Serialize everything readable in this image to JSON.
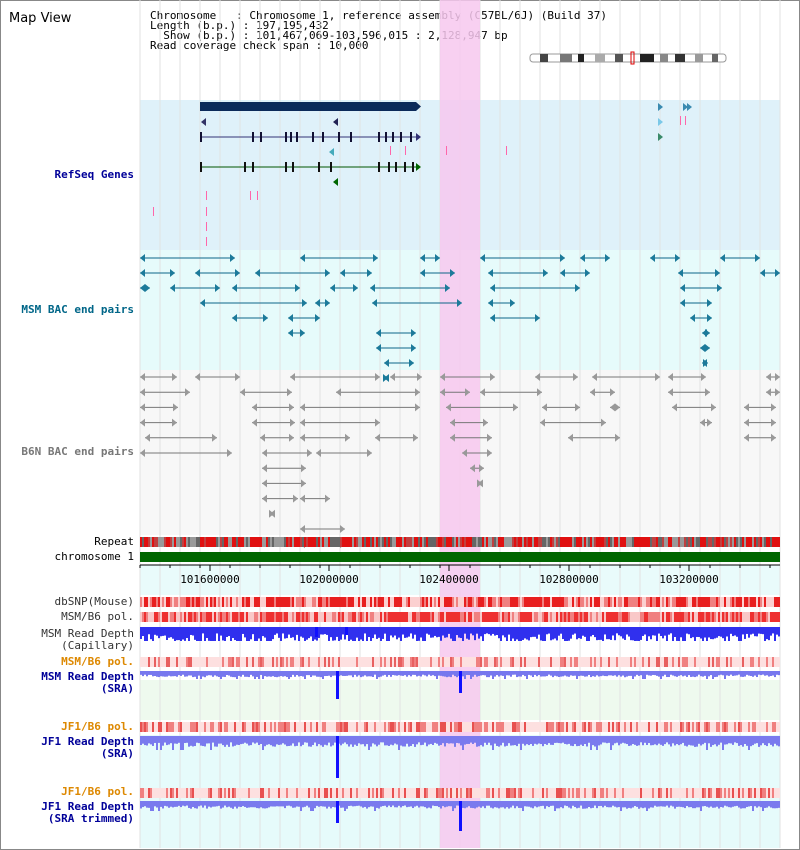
{
  "title": "Map View",
  "info": {
    "line1": "Chromosome   : Chromosome 1, reference assembly (C57BL/6J) (Build 37)",
    "line2": "Length (b.p.) : 197,195,432",
    "line3": "  Show (b.p.) : 101,467,069-103,596,015 : 2,128,947 bp",
    "line4": "Read coverage check span : 10,000"
  },
  "tracks": {
    "refseq": "RefSeq Genes",
    "msm_bac": "MSM BAC end pairs",
    "b6n_bac": "B6N BAC end pairs",
    "repeat": "Repeat",
    "chromosome": "chromosome 1",
    "dbsnp": "dbSNP(Mouse)",
    "msm_pol_cap": "MSM/B6 pol.",
    "msm_depth_cap": "MSM Read Depth\n(Capillary)",
    "msm_pol_sra": "MSM/B6 pol.",
    "msm_depth_sra": "MSM Read Depth\n(SRA)",
    "jf1_pol": "JF1/B6 pol.",
    "jf1_depth": "JF1 Read Depth\n(SRA)",
    "jf1_pol_trim": "JF1/B6 pol.",
    "jf1_depth_trim": "JF1 Read Depth\n(SRA trimmed)"
  },
  "axis": {
    "ticks": [
      "101600000",
      "102000000",
      "102400000",
      "102800000",
      "103200000"
    ]
  },
  "colors": {
    "refseq_label": "#000099",
    "msm_label": "#006688",
    "b6n_label": "#666666",
    "pol_orange": "#dd8800",
    "highlight": "#f7c8ee",
    "chromosome_bar": "#006600"
  }
}
